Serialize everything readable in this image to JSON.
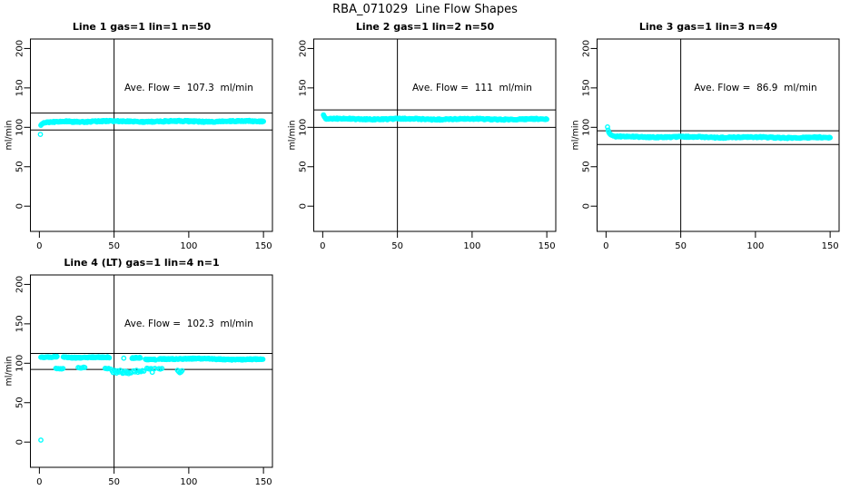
{
  "figure": {
    "title": "RBA_071029  Line Flow Shapes"
  },
  "chart_data": [
    {
      "type": "scatter",
      "title": "Line 1 gas=1 lin=1 n=50",
      "annotation": "Ave. Flow =  107.3  ml/min",
      "ave_flow_ml_min": 107.3,
      "line": 1,
      "gas": 1,
      "lin": 1,
      "n": 50,
      "ylabel": "ml/min",
      "xticks": [
        0,
        50,
        100,
        150
      ],
      "yticks": [
        0,
        50,
        100,
        150,
        200
      ],
      "xlim": [
        -6,
        156
      ],
      "ylim": [
        -32,
        212
      ],
      "vline_x": 50,
      "ref_lines_y": [
        118.0,
        96.6
      ],
      "point_color": "#00FFFF",
      "band_segments": [
        {
          "x0": 3,
          "x1": 20,
          "y0": 105.8,
          "y1": 107.4,
          "jitter": 1.1,
          "step": 0.5
        },
        {
          "x0": 20,
          "x1": 150,
          "y0": 107.4,
          "y1": 107.6,
          "jitter": 1.2,
          "step": 0.5
        }
      ],
      "points": [
        [
          0.7,
          91
        ],
        [
          1,
          102.5
        ],
        [
          1.5,
          103.8
        ],
        [
          2,
          104.6
        ],
        [
          2.5,
          105.2
        ]
      ]
    },
    {
      "type": "scatter",
      "title": "Line 2 gas=1 lin=2 n=50",
      "annotation": "Ave. Flow =  111  ml/min",
      "ave_flow_ml_min": 111,
      "line": 2,
      "gas": 1,
      "lin": 2,
      "n": 50,
      "ylabel": "ml/min",
      "xticks": [
        0,
        50,
        100,
        150
      ],
      "yticks": [
        0,
        50,
        100,
        150,
        200
      ],
      "xlim": [
        -6,
        156
      ],
      "ylim": [
        -32,
        212
      ],
      "vline_x": 50,
      "ref_lines_y": [
        122.1,
        99.9
      ],
      "point_color": "#00FFFF",
      "band_segments": [
        {
          "x0": 2,
          "x1": 150,
          "y0": 110.6,
          "y1": 110.2,
          "jitter": 1.1,
          "step": 0.5
        }
      ],
      "points": [
        [
          0.5,
          115.8
        ],
        [
          0.8,
          114.5
        ],
        [
          1.2,
          113.2
        ],
        [
          1.6,
          112.2
        ],
        [
          2,
          111.4
        ]
      ]
    },
    {
      "type": "scatter",
      "title": "Line 3 gas=1 lin=3 n=49",
      "annotation": "Ave. Flow =  86.9  ml/min",
      "ave_flow_ml_min": 86.9,
      "line": 3,
      "gas": 1,
      "lin": 3,
      "n": 49,
      "ylabel": "ml/min",
      "xticks": [
        0,
        50,
        100,
        150
      ],
      "yticks": [
        0,
        50,
        100,
        150,
        200
      ],
      "xlim": [
        -6,
        156
      ],
      "ylim": [
        -32,
        212
      ],
      "vline_x": 50,
      "ref_lines_y": [
        95.6,
        78.2
      ],
      "point_color": "#00FFFF",
      "band_segments": [
        {
          "x0": 6,
          "x1": 150,
          "y0": 88.0,
          "y1": 86.8,
          "jitter": 1.1,
          "step": 0.5
        }
      ],
      "points": [
        [
          1,
          100.5
        ],
        [
          1.4,
          96.5
        ],
        [
          1.8,
          94
        ],
        [
          2.2,
          92.5
        ],
        [
          2.7,
          91.5
        ],
        [
          3.2,
          90.5
        ],
        [
          4,
          89.8
        ],
        [
          5,
          89
        ]
      ]
    },
    {
      "type": "scatter",
      "title": "Line 4 (LT) gas=1 lin=4 n=1",
      "annotation": "Ave. Flow =  102.3  ml/min",
      "ave_flow_ml_min": 102.3,
      "line": 4,
      "gas": 1,
      "lin": 4,
      "n": 1,
      "ylabel": "ml/min",
      "xticks": [
        0,
        50,
        100,
        150
      ],
      "yticks": [
        0,
        50,
        100,
        150,
        200
      ],
      "xlim": [
        -6,
        156
      ],
      "ylim": [
        -32,
        212
      ],
      "vline_x": 50,
      "ref_lines_y": [
        112.5,
        92.1
      ],
      "point_color": "#00FFFF",
      "band_segments": [
        {
          "x0": 1,
          "x1": 12,
          "y0": 107.3,
          "y1": 107.6,
          "jitter": 0.9,
          "step": 0.4
        },
        {
          "x0": 16,
          "x1": 29,
          "y0": 107.6,
          "y1": 107.4,
          "jitter": 0.9,
          "step": 0.4
        },
        {
          "x0": 30,
          "x1": 47,
          "y0": 107.2,
          "y1": 107.2,
          "jitter": 0.9,
          "step": 0.4
        },
        {
          "x0": 62,
          "x1": 68,
          "y0": 107.0,
          "y1": 107.0,
          "jitter": 0.8,
          "step": 0.4
        },
        {
          "x0": 71,
          "x1": 78,
          "y0": 104.3,
          "y1": 104.5,
          "jitter": 0.8,
          "step": 0.4
        },
        {
          "x0": 80,
          "x1": 150,
          "y0": 105.8,
          "y1": 104.8,
          "jitter": 0.9,
          "step": 0.4
        }
      ],
      "points": [
        [
          1,
          2.5
        ],
        [
          56.5,
          106.5
        ],
        [
          11,
          93.6
        ],
        [
          11.8,
          93.1
        ],
        [
          12.6,
          93.3
        ],
        [
          13.4,
          92.9
        ],
        [
          14.2,
          93.1
        ],
        [
          15,
          92.8
        ],
        [
          15.8,
          93.3
        ],
        [
          26,
          94.6
        ],
        [
          26.9,
          94.1
        ],
        [
          27.8,
          93.9
        ],
        [
          28.7,
          94.3
        ],
        [
          29.6,
          95
        ],
        [
          30.4,
          94.6
        ],
        [
          44,
          93.6
        ],
        [
          44.8,
          93.2
        ],
        [
          45.6,
          93
        ],
        [
          46.4,
          93.4
        ],
        [
          48,
          92.4
        ],
        [
          48.8,
          90.2
        ],
        [
          49.4,
          88.2
        ],
        [
          50.2,
          91
        ],
        [
          50.9,
          89.2
        ],
        [
          51.6,
          87.6
        ],
        [
          52.4,
          90.4
        ],
        [
          53.2,
          88.7
        ],
        [
          54.2,
          91
        ],
        [
          55,
          89.1
        ],
        [
          55.8,
          87.2
        ],
        [
          56.6,
          88.1
        ],
        [
          57.4,
          90
        ],
        [
          58.2,
          87.6
        ],
        [
          59,
          89
        ],
        [
          59.8,
          86.9
        ],
        [
          60.6,
          88.4
        ],
        [
          61.4,
          87.9
        ],
        [
          63,
          90.4
        ],
        [
          64,
          89.1
        ],
        [
          65,
          91
        ],
        [
          66,
          88.6
        ],
        [
          67,
          90
        ],
        [
          68,
          89.3
        ],
        [
          69,
          90.7
        ],
        [
          70,
          90
        ],
        [
          72,
          93.7
        ],
        [
          72.9,
          93.1
        ],
        [
          73.8,
          92.6
        ],
        [
          74.7,
          93.3
        ],
        [
          75.6,
          88.6
        ],
        [
          76.5,
          92.9
        ],
        [
          77.4,
          93.4
        ],
        [
          80,
          93.1
        ],
        [
          81,
          92.7
        ],
        [
          82,
          93.3
        ],
        [
          92.5,
          91
        ],
        [
          93.2,
          89.4
        ],
        [
          94,
          88.1
        ],
        [
          94.8,
          89
        ],
        [
          95.5,
          90.6
        ]
      ]
    }
  ]
}
